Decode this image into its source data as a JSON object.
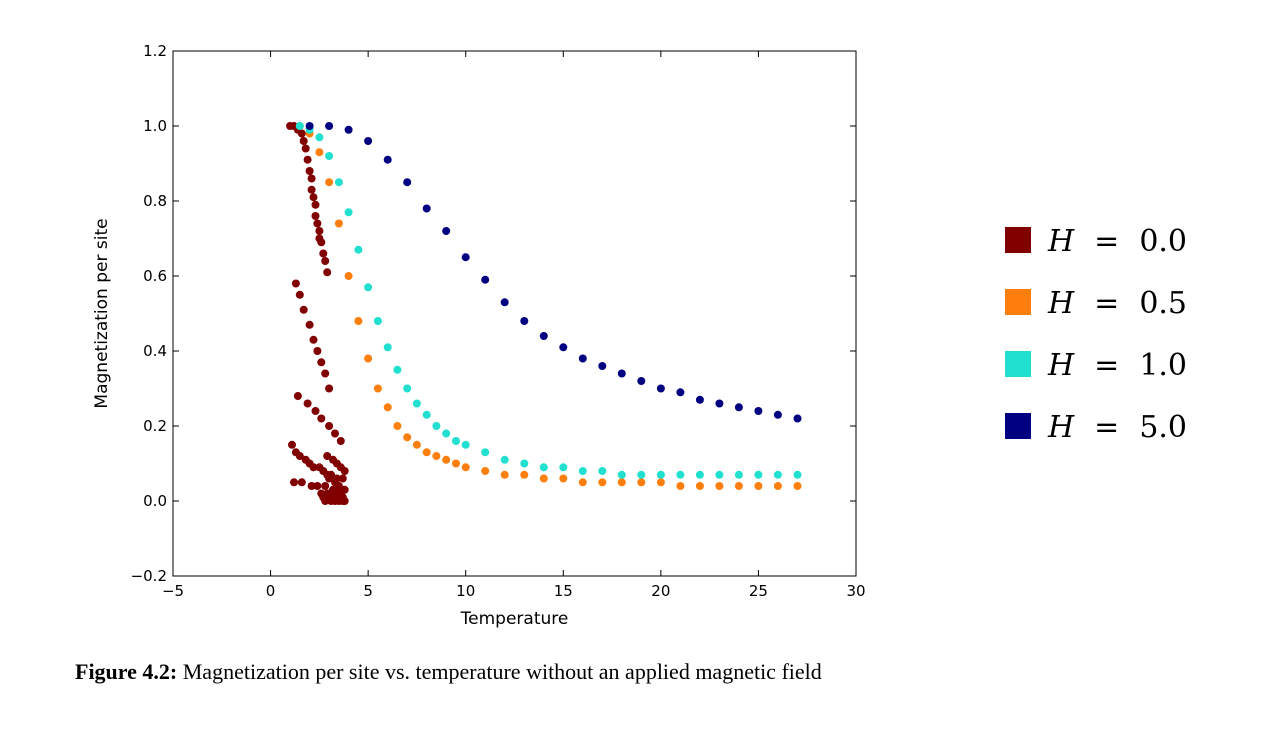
{
  "chart_data": {
    "type": "scatter",
    "xlabel": "Temperature",
    "ylabel": "Magnetization per site",
    "xlim": [
      -5,
      30
    ],
    "ylim": [
      -0.2,
      1.2
    ],
    "xticks": [
      -5,
      0,
      5,
      10,
      15,
      20,
      25,
      30
    ],
    "yticks": [
      -0.2,
      0.0,
      0.2,
      0.4,
      0.6,
      0.8,
      1.0,
      1.2
    ],
    "xtick_labels": [
      "−5",
      "0",
      "5",
      "10",
      "15",
      "20",
      "25",
      "30"
    ],
    "ytick_labels": [
      "−0.2",
      "0.0",
      "0.2",
      "0.4",
      "0.6",
      "0.8",
      "1.0",
      "1.2"
    ],
    "grid": false,
    "legend_position": "right, outside the plot",
    "legend_var": "H",
    "legend_eq": "=",
    "series": [
      {
        "name": "0.0",
        "color": "#800000",
        "x": [
          1.0,
          1.2,
          1.4,
          1.6,
          1.7,
          1.8,
          1.9,
          2.0,
          2.1,
          2.1,
          2.2,
          2.3,
          2.3,
          2.4,
          2.5,
          2.5,
          2.6,
          2.7,
          2.8,
          2.9,
          1.3,
          1.5,
          1.7,
          2.0,
          2.2,
          2.4,
          2.6,
          2.8,
          3.0,
          1.4,
          1.9,
          2.3,
          2.6,
          3.0,
          3.3,
          3.6,
          1.1,
          1.3,
          1.5,
          1.8,
          2.0,
          2.2,
          2.5,
          2.7,
          2.9,
          3.1,
          3.4,
          3.7,
          1.2,
          1.6,
          2.1,
          2.4,
          2.8,
          3.2,
          3.5,
          3.8,
          2.6,
          2.9,
          3.1,
          3.3,
          3.5,
          3.7,
          2.7,
          3.0,
          3.2,
          3.4,
          3.6,
          3.8,
          2.8,
          3.1,
          3.3,
          3.5,
          3.7,
          2.9,
          3.2,
          3.4,
          3.6,
          3.8,
          3.0,
          3.3,
          3.5,
          3.7
        ],
        "y": [
          1.0,
          1.0,
          0.99,
          0.98,
          0.96,
          0.94,
          0.91,
          0.88,
          0.86,
          0.83,
          0.81,
          0.79,
          0.76,
          0.74,
          0.72,
          0.7,
          0.69,
          0.66,
          0.64,
          0.61,
          0.58,
          0.55,
          0.51,
          0.47,
          0.43,
          0.4,
          0.37,
          0.34,
          0.3,
          0.28,
          0.26,
          0.24,
          0.22,
          0.2,
          0.18,
          0.16,
          0.15,
          0.13,
          0.12,
          0.11,
          0.1,
          0.09,
          0.09,
          0.08,
          0.07,
          0.07,
          0.06,
          0.06,
          0.05,
          0.05,
          0.04,
          0.04,
          0.04,
          0.03,
          0.03,
          0.03,
          0.02,
          0.02,
          0.02,
          0.02,
          0.01,
          0.01,
          0.01,
          0.01,
          0.01,
          0.01,
          0.01,
          0.0,
          0.0,
          0.0,
          0.0,
          0.0,
          0.0,
          0.12,
          0.11,
          0.1,
          0.09,
          0.08,
          0.06,
          0.05,
          0.04,
          0.03
        ]
      },
      {
        "name": "0.5",
        "color": "#ff7f0e",
        "x": [
          1.5,
          2.0,
          2.5,
          3.0,
          3.5,
          4.0,
          4.5,
          5.0,
          5.5,
          6.0,
          6.5,
          7.0,
          7.5,
          8.0,
          8.5,
          9.0,
          9.5,
          10.0,
          11.0,
          12.0,
          13.0,
          14.0,
          15.0,
          16.0,
          17.0,
          18.0,
          19.0,
          20.0,
          21.0,
          22.0,
          23.0,
          24.0,
          25.0,
          26.0,
          27.0
        ],
        "y": [
          1.0,
          0.98,
          0.93,
          0.85,
          0.74,
          0.6,
          0.48,
          0.38,
          0.3,
          0.25,
          0.2,
          0.17,
          0.15,
          0.13,
          0.12,
          0.11,
          0.1,
          0.09,
          0.08,
          0.07,
          0.07,
          0.06,
          0.06,
          0.05,
          0.05,
          0.05,
          0.05,
          0.05,
          0.04,
          0.04,
          0.04,
          0.04,
          0.04,
          0.04,
          0.04
        ]
      },
      {
        "name": "1.0",
        "color": "#22e0d0",
        "x": [
          1.5,
          2.0,
          2.5,
          3.0,
          3.5,
          4.0,
          4.5,
          5.0,
          5.5,
          6.0,
          6.5,
          7.0,
          7.5,
          8.0,
          8.5,
          9.0,
          9.5,
          10.0,
          11.0,
          12.0,
          13.0,
          14.0,
          15.0,
          16.0,
          17.0,
          18.0,
          19.0,
          20.0,
          21.0,
          22.0,
          23.0,
          24.0,
          25.0,
          26.0,
          27.0
        ],
        "y": [
          1.0,
          0.99,
          0.97,
          0.92,
          0.85,
          0.77,
          0.67,
          0.57,
          0.48,
          0.41,
          0.35,
          0.3,
          0.26,
          0.23,
          0.2,
          0.18,
          0.16,
          0.15,
          0.13,
          0.11,
          0.1,
          0.09,
          0.09,
          0.08,
          0.08,
          0.07,
          0.07,
          0.07,
          0.07,
          0.07,
          0.07,
          0.07,
          0.07,
          0.07,
          0.07
        ]
      },
      {
        "name": "5.0",
        "color": "#000080",
        "x": [
          2.0,
          3.0,
          4.0,
          5.0,
          6.0,
          7.0,
          8.0,
          9.0,
          10.0,
          11.0,
          12.0,
          13.0,
          14.0,
          15.0,
          16.0,
          17.0,
          18.0,
          19.0,
          20.0,
          21.0,
          22.0,
          23.0,
          24.0,
          25.0,
          26.0,
          27.0
        ],
        "y": [
          1.0,
          1.0,
          0.99,
          0.96,
          0.91,
          0.85,
          0.78,
          0.72,
          0.65,
          0.59,
          0.53,
          0.48,
          0.44,
          0.41,
          0.38,
          0.36,
          0.34,
          0.32,
          0.3,
          0.29,
          0.27,
          0.26,
          0.25,
          0.24,
          0.23,
          0.22
        ]
      }
    ]
  },
  "caption": {
    "label": "Figure 4.2:",
    "text": " Magnetization per site vs. temperature without an applied magnetic field"
  }
}
